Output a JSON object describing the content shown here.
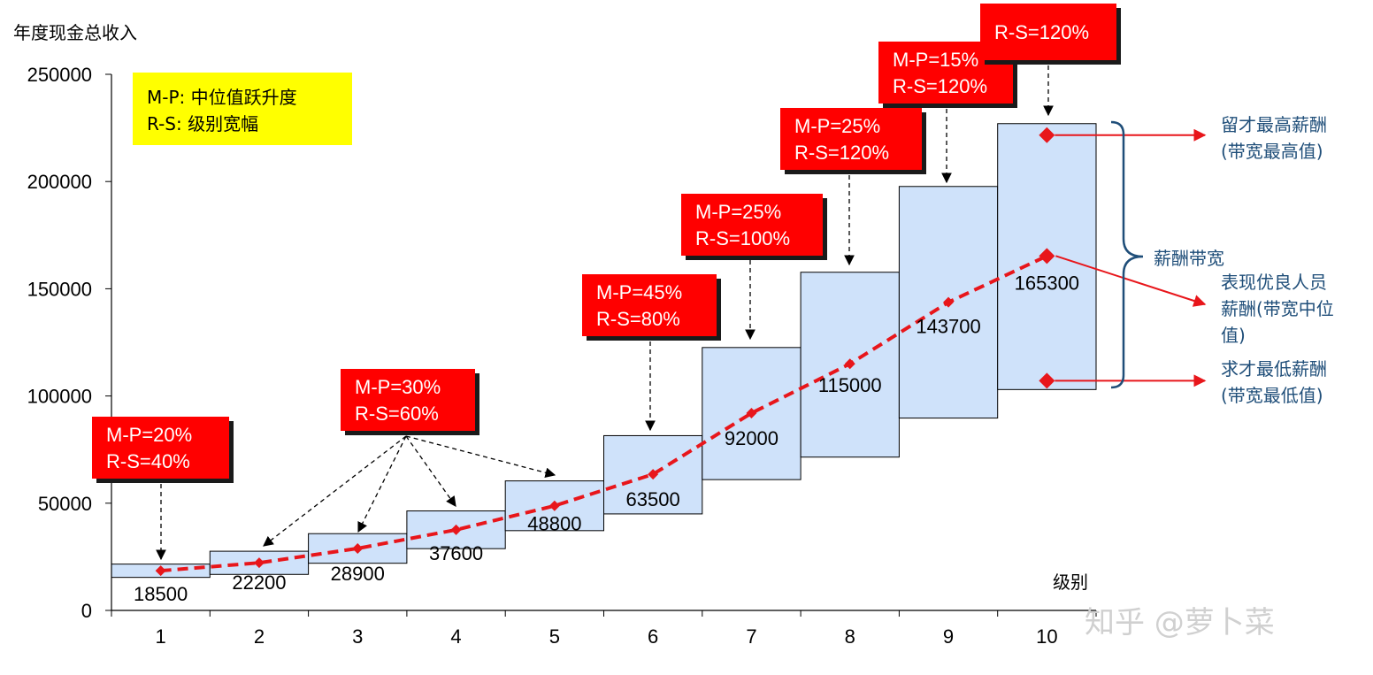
{
  "chart_data": {
    "type": "bar",
    "ylabel": "年度现金总收入",
    "xlabel": "级别",
    "ylim": [
      0,
      250000
    ],
    "yticks": [
      0,
      50000,
      100000,
      150000,
      200000,
      250000
    ],
    "categories": [
      "1",
      "2",
      "3",
      "4",
      "5",
      "6",
      "7",
      "8",
      "9",
      "10"
    ],
    "midpoints": [
      18500,
      22200,
      28900,
      37600,
      48800,
      63500,
      92000,
      115000,
      143700,
      165300
    ],
    "midpoint_labels": [
      "18500",
      "22200",
      "28900",
      "37600",
      "48800",
      "63500",
      "92000",
      "115000",
      "143700",
      "165300"
    ],
    "range_min": [
      15400,
      16800,
      22000,
      28800,
      37200,
      45000,
      61000,
      71500,
      89700,
      103000
    ],
    "range_max": [
      21600,
      27600,
      35800,
      46400,
      60400,
      81500,
      122600,
      157700,
      197700,
      227000
    ],
    "bar_color": "#cfe2fa",
    "line_color": "#e8161b",
    "annotations": [
      {
        "lines": [
          "M-P=20%",
          "R-S=40%"
        ],
        "targets": [
          1
        ]
      },
      {
        "lines": [
          "M-P=30%",
          "R-S=60%"
        ],
        "targets": [
          2,
          3,
          4,
          5
        ]
      },
      {
        "lines": [
          "M-P=45%",
          "R-S=80%"
        ],
        "targets": [
          6
        ]
      },
      {
        "lines": [
          "M-P=25%",
          "R-S=100%"
        ],
        "targets": [
          7
        ]
      },
      {
        "lines": [
          "M-P=25%",
          "R-S=120%"
        ],
        "targets": [
          8
        ]
      },
      {
        "lines": [
          "M-P=15%",
          "R-S=120%"
        ],
        "targets": [
          9
        ]
      },
      {
        "lines": [
          "R-S=120%"
        ],
        "targets": [
          10
        ]
      }
    ],
    "legend": [
      "M-P: 中位值跃升度",
      "R-S: 级别宽幅"
    ],
    "legend_color": "#ffff00",
    "side_labels": {
      "top": [
        "留才最高薪酬",
        "(带宽最高值)"
      ],
      "band": "薪酬带宽",
      "middle": [
        "表现优良人员",
        "薪酬(带宽中位",
        "值)"
      ],
      "bottom": [
        "求才最低薪酬",
        "(带宽最低值)"
      ]
    },
    "side_color": "#1f4e79",
    "watermark": "知乎 @萝卜菜"
  }
}
